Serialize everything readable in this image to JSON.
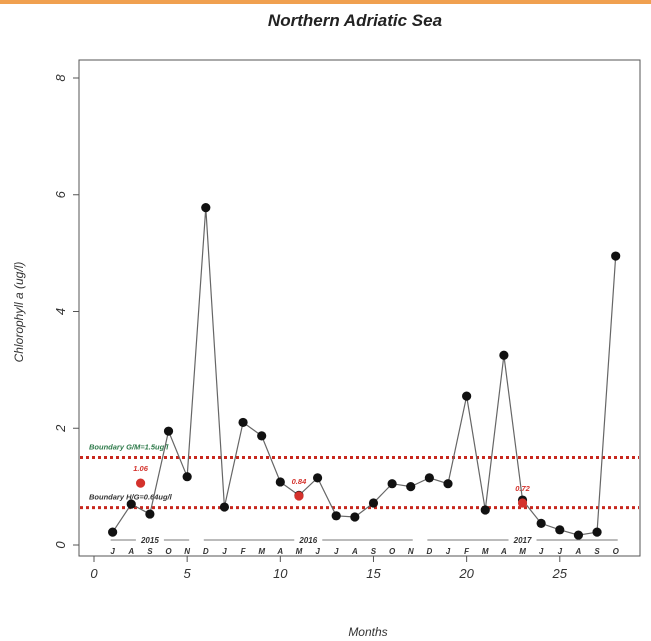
{
  "chart_data": {
    "type": "line",
    "title": "Northern Adriatic Sea",
    "xlabel": "Months",
    "ylabel": "Chlorophyll a (ug/l)",
    "xlim": [
      0,
      28.5
    ],
    "ylim": [
      0,
      8.5
    ],
    "x_ticks": [
      0,
      5,
      10,
      15,
      20,
      25
    ],
    "y_ticks": [
      0,
      2,
      4,
      6,
      8
    ],
    "grid": false,
    "accent_color": "#f0a050",
    "series": [
      {
        "x": [
          1,
          2,
          3,
          4,
          5,
          6,
          7,
          8,
          9,
          10,
          11,
          12,
          13,
          14,
          15,
          16,
          17,
          18,
          19,
          20,
          21,
          22,
          23,
          24,
          25,
          26,
          27,
          28
        ],
        "values": [
          0.22,
          0.7,
          0.53,
          1.95,
          1.17,
          5.78,
          0.65,
          2.1,
          1.87,
          1.08,
          0.85,
          1.15,
          0.5,
          0.48,
          0.72,
          1.05,
          1.0,
          1.15,
          1.05,
          2.55,
          0.6,
          3.25,
          0.77,
          0.37,
          0.26,
          0.17,
          0.22,
          4.95
        ],
        "color": "#111111"
      }
    ],
    "highlight_points": [
      {
        "x": 2.5,
        "y": 1.06,
        "label": "1.06",
        "color": "#d4322c"
      },
      {
        "x": 11,
        "y": 0.84,
        "label": "0.84",
        "color": "#d4322c"
      },
      {
        "x": 23,
        "y": 0.72,
        "label": "0.72",
        "color": "#d4322c"
      }
    ],
    "boundaries": [
      {
        "y": 1.5,
        "label": "Boundary G/M=1.5ug/l",
        "color": "#c8281e",
        "label_color": "#2e7a4a"
      },
      {
        "y": 0.64,
        "label": "Boundary H/G=0.64ug/l",
        "color": "#c8281e",
        "label_color": "#333333"
      }
    ],
    "months": [
      {
        "x": 1,
        "label": "J"
      },
      {
        "x": 2,
        "label": "A"
      },
      {
        "x": 3,
        "label": "S"
      },
      {
        "x": 4,
        "label": "O"
      },
      {
        "x": 5,
        "label": "N"
      },
      {
        "x": 6,
        "label": "D"
      },
      {
        "x": 7,
        "label": "J"
      },
      {
        "x": 8,
        "label": "F"
      },
      {
        "x": 9,
        "label": "M"
      },
      {
        "x": 10,
        "label": "A"
      },
      {
        "x": 11,
        "label": "M"
      },
      {
        "x": 12,
        "label": "J"
      },
      {
        "x": 13,
        "label": "J"
      },
      {
        "x": 14,
        "label": "A"
      },
      {
        "x": 15,
        "label": "S"
      },
      {
        "x": 16,
        "label": "O"
      },
      {
        "x": 17,
        "label": "N"
      },
      {
        "x": 18,
        "label": "D"
      },
      {
        "x": 19,
        "label": "J"
      },
      {
        "x": 20,
        "label": "F"
      },
      {
        "x": 21,
        "label": "M"
      },
      {
        "x": 22,
        "label": "A"
      },
      {
        "x": 23,
        "label": "M"
      },
      {
        "x": 24,
        "label": "J"
      },
      {
        "x": 25,
        "label": "J"
      },
      {
        "x": 26,
        "label": "A"
      },
      {
        "x": 27,
        "label": "S"
      },
      {
        "x": 28,
        "label": "O"
      }
    ],
    "years": [
      {
        "label": "2015",
        "from": 1,
        "to": 5
      },
      {
        "label": "2016",
        "from": 6,
        "to": 17
      },
      {
        "label": "2017",
        "from": 18,
        "to": 28
      }
    ]
  }
}
